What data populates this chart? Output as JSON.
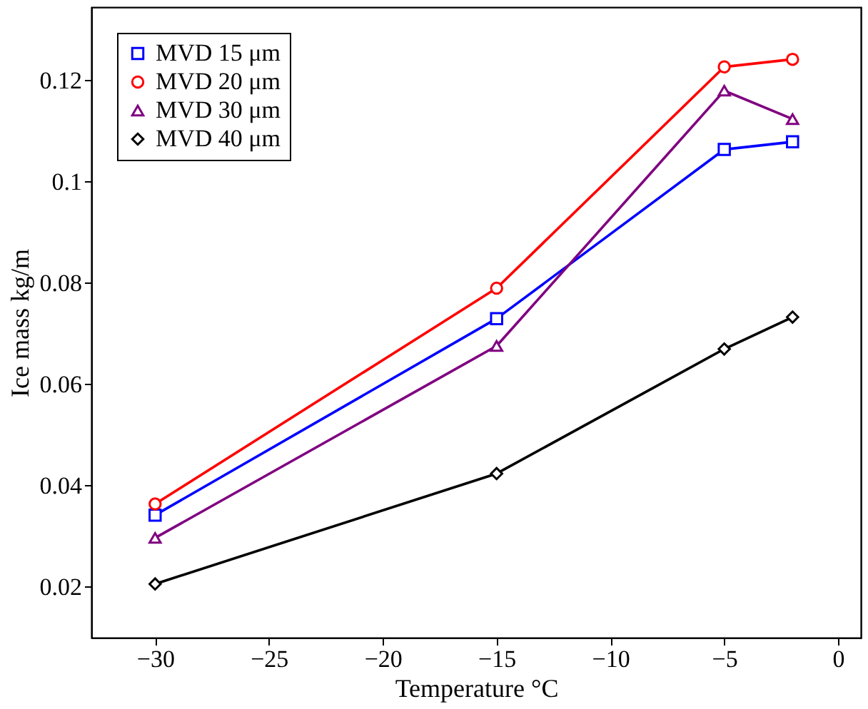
{
  "chart_data": {
    "type": "line",
    "xlabel": "Temperature °C",
    "ylabel": "Ice mass kg/m",
    "x": [
      -30,
      -15,
      -5,
      -2
    ],
    "series": [
      {
        "name": "MVD 15 μm",
        "color": "#0000ff",
        "marker": "square",
        "values": [
          0.0342,
          0.073,
          0.1064,
          0.1079
        ]
      },
      {
        "name": "MVD 20 μm",
        "color": "#ff0000",
        "marker": "circle",
        "values": [
          0.0364,
          0.079,
          0.1227,
          0.1242
        ]
      },
      {
        "name": "MVD 30 μm",
        "color": "#800080",
        "marker": "triangle",
        "values": [
          0.0297,
          0.0676,
          0.118,
          0.1124
        ]
      },
      {
        "name": "MVD 40 μm",
        "color": "#000000",
        "marker": "diamond",
        "values": [
          0.0206,
          0.0424,
          0.067,
          0.0733
        ]
      }
    ],
    "xlim": [
      -32.8,
      1
    ],
    "xticks": [
      -30,
      -25,
      -20,
      -15,
      -10,
      -5,
      0
    ],
    "ylim": [
      0.01,
      0.1345
    ],
    "yticks": [
      0.02,
      0.04,
      0.06,
      0.08,
      0.1,
      0.12
    ],
    "grid": false,
    "legend": "top left",
    "line_style": "solid"
  }
}
